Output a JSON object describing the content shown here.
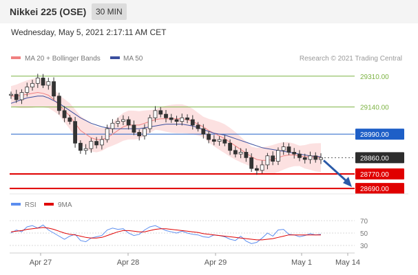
{
  "header": {
    "title": "Nikkei 225 (OSE)",
    "interval": "30 MIN"
  },
  "datetime": "Wednesday, May 5, 2021 2:17:11 AM CET",
  "legend": {
    "ma20": "MA 20 + Bollinger Bands",
    "ma50": "MA 50",
    "credit": "Research © 2021 Trading Central"
  },
  "rsi_legend": {
    "rsi": "RSI",
    "ma9": "9MA"
  },
  "colors": {
    "resistance": "#7cb342",
    "pivot": "#1e5fc7",
    "support": "#e00000",
    "ma20": "#f08080",
    "band": "#f9c8c8",
    "ma50": "#3a4f9e",
    "rsi": "#5b8def",
    "rsi_ma": "#e00000",
    "arrow": "#2a5aa8"
  },
  "chart_data": [
    {
      "type": "line",
      "title": "",
      "x_ticks": [
        "Apr 27",
        "Apr 28",
        "Apr 29",
        "May 1",
        "May 14"
      ],
      "ylim": [
        28660,
        29370
      ],
      "levels": [
        {
          "label": "29310.00",
          "value": 29310,
          "kind": "resistance"
        },
        {
          "label": "29140.00",
          "value": 29140,
          "kind": "resistance"
        },
        {
          "label": "28990.00",
          "value": 28990,
          "kind": "pivot"
        },
        {
          "label": "28860.00",
          "value": 28860,
          "kind": "current"
        },
        {
          "label": "28770.00",
          "value": 28770,
          "kind": "support"
        },
        {
          "label": "28690.00",
          "value": 28690,
          "kind": "support"
        }
      ],
      "price_series": [
        29210,
        29180,
        29220,
        29250,
        29270,
        29300,
        29260,
        29280,
        29200,
        29120,
        29080,
        29060,
        28940,
        28900,
        28910,
        28950,
        28930,
        28960,
        29020,
        29050,
        29060,
        29070,
        29040,
        29000,
        28980,
        29020,
        29080,
        29120,
        29100,
        29080,
        29070,
        29060,
        29080,
        29070,
        29040,
        29020,
        28990,
        28960,
        28950,
        28960,
        28940,
        28900,
        28880,
        28890,
        28860,
        28800,
        28790,
        28820,
        28870,
        28840,
        28900,
        28920,
        28890,
        28880,
        28860,
        28850,
        28870,
        28850,
        28860
      ],
      "ma20_series": [
        29200,
        29200,
        29205,
        29210,
        29215,
        29220,
        29215,
        29205,
        29180,
        29150,
        29120,
        29090,
        29050,
        29010,
        28990,
        28970,
        28960,
        28960,
        28970,
        28990,
        29010,
        29030,
        29040,
        29040,
        29040,
        29050,
        29060,
        29070,
        29075,
        29075,
        29075,
        29075,
        29075,
        29070,
        29060,
        29045,
        29030,
        29010,
        28995,
        28980,
        28965,
        28945,
        28925,
        28905,
        28885,
        28865,
        28850,
        28845,
        28845,
        28850,
        28860,
        28870,
        28875,
        28875,
        28870,
        28865,
        28865,
        28862,
        28860
      ],
      "ma50_series": [
        29160,
        29170,
        29180,
        29190,
        29195,
        29200,
        29200,
        29190,
        29175,
        29160,
        29140,
        29120,
        29100,
        29080,
        29065,
        29050,
        29040,
        29030,
        29025,
        29020,
        29020,
        29020,
        29020,
        29020,
        29020,
        29025,
        29030,
        29035,
        29040,
        29045,
        29045,
        29045,
        29045,
        29040,
        29035,
        29025,
        29015,
        29005,
        28995,
        28990,
        28985,
        28975,
        28965,
        28955,
        28945,
        28935,
        28925,
        28915,
        28910,
        28905,
        28900,
        28895,
        28890,
        28885,
        28880,
        28875,
        28870,
        28868,
        28865
      ]
    },
    {
      "type": "line",
      "title": "",
      "y_ticks": [
        "70",
        "50",
        "30"
      ],
      "ylim": [
        20,
        80
      ],
      "rsi_series": [
        50,
        55,
        52,
        60,
        62,
        58,
        63,
        55,
        50,
        45,
        40,
        45,
        48,
        38,
        36,
        42,
        44,
        46,
        55,
        58,
        56,
        57,
        50,
        46,
        48,
        55,
        60,
        62,
        58,
        54,
        52,
        50,
        53,
        50,
        48,
        47,
        44,
        43,
        47,
        46,
        44,
        40,
        38,
        45,
        37,
        33,
        35,
        42,
        50,
        45,
        55,
        56,
        48,
        47,
        44,
        46,
        49,
        47,
        48
      ],
      "rsi_ma_series": [
        52,
        53,
        54,
        56,
        57,
        58,
        59,
        58,
        56,
        53,
        50,
        48,
        47,
        45,
        43,
        42,
        42,
        43,
        46,
        49,
        52,
        54,
        54,
        53,
        52,
        52,
        54,
        56,
        57,
        57,
        56,
        55,
        54,
        53,
        52,
        51,
        49,
        48,
        47,
        46,
        45,
        44,
        43,
        42,
        41,
        40,
        39,
        39,
        40,
        41,
        43,
        45,
        47,
        47,
        47,
        47,
        47,
        47,
        47
      ]
    }
  ]
}
